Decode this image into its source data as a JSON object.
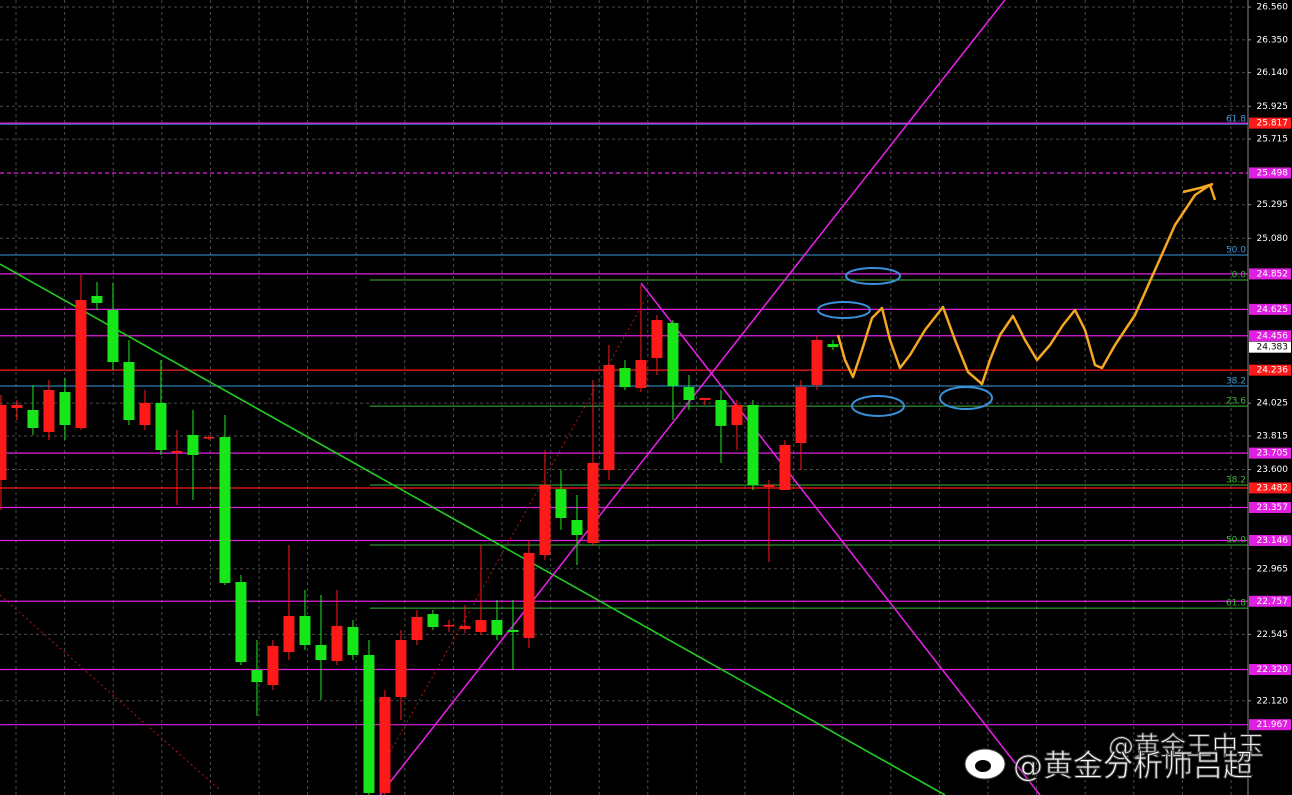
{
  "chart_data": {
    "type": "candlestick",
    "open": [
      23.533,
      23.994,
      23.981,
      23.84,
      24.096,
      23.866,
      24.711,
      24.621,
      24.288,
      23.885,
      24.026,
      23.706,
      23.821,
      23.808,
      23.808,
      22.88,
      22.317,
      22.221,
      22.432,
      22.663,
      22.477,
      22.375,
      22.592,
      22.413,
      21.53,
      22.144,
      22.509,
      22.675,
      22.599,
      22.579,
      22.56,
      22.637,
      22.573,
      22.522,
      23.053,
      23.475,
      23.277,
      23.13,
      23.597,
      24.25,
      24.122,
      24.314,
      24.538,
      24.128,
      24.045,
      24.045,
      23.885,
      24.013,
      23.488,
      23.469,
      23.77,
      24.141,
      24.403
    ],
    "high": [
      24.077,
      24.045,
      24.141,
      24.173,
      24.186,
      24.845,
      24.8,
      24.794,
      24.429,
      24.109,
      24.301,
      23.853,
      23.981,
      23.821,
      23.949,
      22.925,
      22.509,
      22.509,
      23.117,
      22.829,
      22.797,
      22.829,
      22.637,
      22.509,
      22.189,
      22.573,
      22.701,
      22.701,
      22.637,
      22.733,
      23.117,
      22.765,
      22.765,
      23.149,
      23.725,
      23.597,
      23.437,
      24.173,
      24.397,
      24.301,
      24.781,
      24.589,
      24.557,
      24.205,
      24.058,
      24.109,
      24.045,
      24.045,
      23.533,
      23.789,
      24.173,
      24.461,
      24.429
    ],
    "low": [
      23.341,
      23.917,
      23.821,
      23.789,
      23.789,
      23.853,
      24.621,
      24.237,
      23.885,
      23.853,
      23.693,
      23.373,
      23.405,
      23.789,
      22.861,
      22.349,
      22.023,
      22.189,
      22.381,
      22.445,
      22.125,
      22.349,
      22.381,
      21.517,
      21.517,
      21.997,
      22.477,
      22.573,
      22.56,
      22.554,
      22.541,
      22.509,
      22.317,
      22.458,
      23.021,
      23.213,
      22.989,
      23.117,
      23.533,
      24.109,
      24.096,
      24.205,
      23.917,
      23.981,
      24.013,
      23.642,
      23.725,
      23.469,
      23.008,
      23.469,
      23.597,
      24.109,
      24.365
    ],
    "close": [
      24.013,
      24.013,
      23.866,
      24.109,
      23.885,
      24.685,
      24.666,
      24.288,
      23.917,
      24.026,
      23.725,
      23.719,
      23.693,
      23.808,
      22.874,
      22.368,
      22.24,
      22.471,
      22.663,
      22.477,
      22.381,
      22.599,
      22.413,
      21.53,
      22.144,
      22.509,
      22.656,
      22.592,
      22.605,
      22.599,
      22.637,
      22.541,
      22.56,
      23.066,
      23.501,
      23.29,
      23.181,
      23.642,
      24.269,
      24.128,
      24.301,
      24.557,
      24.135,
      24.045,
      24.058,
      23.879,
      24.013,
      23.501,
      23.501,
      23.757,
      24.128,
      24.429,
      24.384
    ],
    "up_color": "#ff1a1a",
    "down_color": "#19e619",
    "xlim": [
      -0.06,
      77.94
    ],
    "ylim": [
      21.517,
      26.605
    ],
    "grid": true,
    "yticks": [
      {
        "value": 26.56,
        "label": "26.560"
      },
      {
        "value": 26.35,
        "label": "26.350"
      },
      {
        "value": 26.14,
        "label": "26.140"
      },
      {
        "value": 25.925,
        "label": "25.925"
      },
      {
        "value": 25.715,
        "label": "25.715"
      },
      {
        "value": 25.295,
        "label": "25.295"
      },
      {
        "value": 25.08,
        "label": "25.080"
      },
      {
        "value": 24.025,
        "label": "24.025"
      },
      {
        "value": 23.815,
        "label": "23.815"
      },
      {
        "value": 23.6,
        "label": "23.600"
      },
      {
        "value": 22.965,
        "label": "22.965"
      },
      {
        "value": 22.545,
        "label": "22.545"
      },
      {
        "value": 22.12,
        "label": "22.120"
      }
    ],
    "levels": [
      {
        "value": 25.817,
        "label": "25.817",
        "color": "#e020e0",
        "box": "#ff1a1a",
        "style": "solid"
      },
      {
        "value": 25.498,
        "label": "25.498",
        "color": "#e020e0",
        "box": "#e020e0",
        "style": "dashed"
      },
      {
        "value": 24.852,
        "label": "24.852",
        "color": "#e020e0",
        "box": "#e020e0",
        "style": "solid"
      },
      {
        "value": 24.625,
        "label": "24.625",
        "color": "#e020e0",
        "box": "#e020e0",
        "style": "solid"
      },
      {
        "value": 24.456,
        "label": "24.456",
        "color": "#e020e0",
        "box": "#e020e0",
        "style": "solid"
      },
      {
        "value": 24.236,
        "label": "24.236",
        "color": "#ff1a1a",
        "box": "#ff1a1a",
        "style": "solid"
      },
      {
        "value": 23.705,
        "label": "23.705",
        "color": "#e020e0",
        "box": "#e020e0",
        "style": "solid"
      },
      {
        "value": 23.482,
        "label": "23.482",
        "color": "#ff1a1a",
        "box": "#ff1a1a",
        "style": "solid"
      },
      {
        "value": 23.357,
        "label": "23.357",
        "color": "#e020e0",
        "box": "#e020e0",
        "style": "solid"
      },
      {
        "value": 23.146,
        "label": "23.146",
        "color": "#e020e0",
        "box": "#e020e0",
        "style": "solid"
      },
      {
        "value": 22.757,
        "label": "22.757",
        "color": "#e020e0",
        "box": "#e020e0",
        "style": "solid"
      },
      {
        "value": 22.32,
        "label": "22.320",
        "color": "#e020e0",
        "box": "#e020e0",
        "style": "solid"
      },
      {
        "value": 21.967,
        "label": "21.967",
        "color": "#e020e0",
        "box": "#e020e0",
        "style": "solid"
      }
    ],
    "current_price": {
      "value": 24.383,
      "label": "24.383"
    },
    "fib_levels": [
      {
        "value": 25.811,
        "label": "61.8",
        "color": "#3a9ad9",
        "from": -0.06
      },
      {
        "value": 24.973,
        "label": "50.0",
        "color": "#3a9ad9",
        "from": -0.06
      },
      {
        "value": 24.813,
        "label": "0.0",
        "color": "#3cb83c",
        "from": 23.06
      },
      {
        "value": 24.135,
        "label": "38.2",
        "color": "#3a9ad9",
        "from": -0.06
      },
      {
        "value": 24.006,
        "label": "23.6",
        "color": "#3cb83c",
        "from": 23.06
      },
      {
        "value": 23.501,
        "label": "38.2",
        "color": "#3cb83c",
        "from": 23.06
      },
      {
        "value": 23.117,
        "label": "50.0",
        "color": "#3cb83c",
        "from": 23.06
      },
      {
        "value": 22.713,
        "label": "61.8",
        "color": "#3cb83c",
        "from": 23.06
      }
    ],
    "trendlines": [
      {
        "color": "#22cc22",
        "style": "solid",
        "x": [
          -0.06,
          59.0
        ],
        "y": [
          24.915,
          21.517
        ]
      },
      {
        "color": "#e020e0",
        "style": "solid",
        "x": [
          23.69,
          62.75
        ],
        "y": [
          21.517,
          26.605
        ]
      },
      {
        "color": "#e020e0",
        "style": "solid",
        "x": [
          40.0,
          64.94
        ],
        "y": [
          24.794,
          21.517
        ]
      },
      {
        "color": "#b01818",
        "style": "dotted",
        "x": [
          -0.06,
          13.69
        ],
        "y": [
          22.797,
          21.549
        ]
      },
      {
        "color": "#b01818",
        "style": "dotted",
        "x": [
          23.69,
          40.25
        ],
        "y": [
          21.677,
          24.685
        ]
      }
    ],
    "watermarks": [
      "@黄金王中玉",
      "@黄金分析师吕超"
    ]
  }
}
